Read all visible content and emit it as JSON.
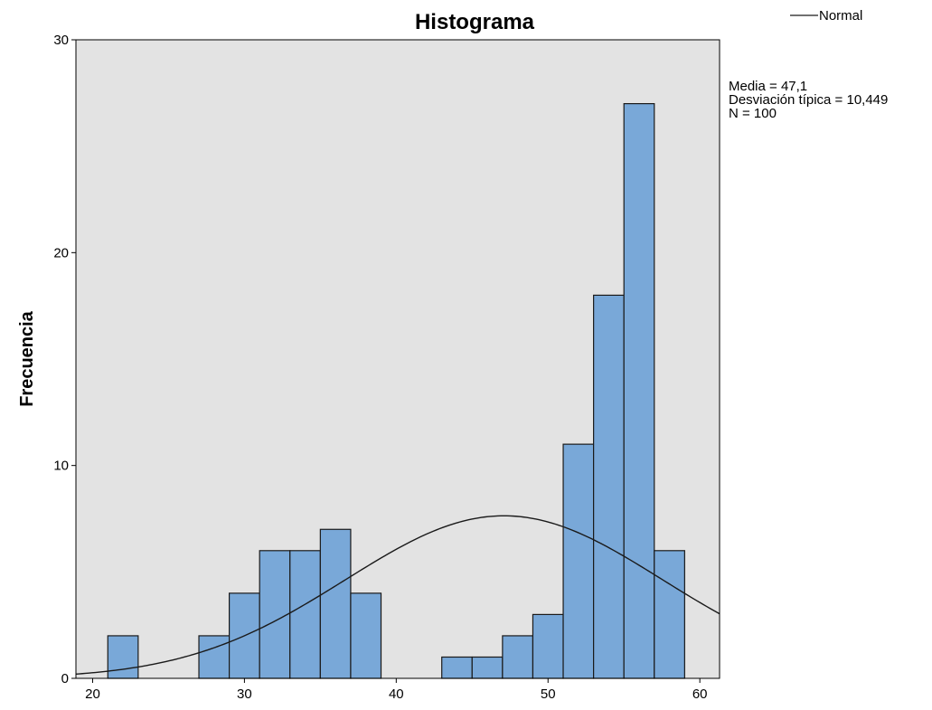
{
  "chart_data": {
    "type": "bar",
    "title": "Histograma",
    "ylabel": "Frecuencia",
    "xlabel": "",
    "bin_width": 2,
    "bins": [
      {
        "x0": 21,
        "x1": 23,
        "count": 2
      },
      {
        "x0": 23,
        "x1": 25,
        "count": 0
      },
      {
        "x0": 25,
        "x1": 27,
        "count": 0
      },
      {
        "x0": 27,
        "x1": 29,
        "count": 2
      },
      {
        "x0": 29,
        "x1": 31,
        "count": 4
      },
      {
        "x0": 31,
        "x1": 33,
        "count": 6
      },
      {
        "x0": 33,
        "x1": 35,
        "count": 6
      },
      {
        "x0": 35,
        "x1": 37,
        "count": 7
      },
      {
        "x0": 37,
        "x1": 39,
        "count": 4
      },
      {
        "x0": 39,
        "x1": 41,
        "count": 0
      },
      {
        "x0": 41,
        "x1": 43,
        "count": 0
      },
      {
        "x0": 43,
        "x1": 45,
        "count": 1
      },
      {
        "x0": 45,
        "x1": 47,
        "count": 1
      },
      {
        "x0": 47,
        "x1": 49,
        "count": 2
      },
      {
        "x0": 49,
        "x1": 51,
        "count": 3
      },
      {
        "x0": 51,
        "x1": 53,
        "count": 11
      },
      {
        "x0": 53,
        "x1": 55,
        "count": 18
      },
      {
        "x0": 55,
        "x1": 57,
        "count": 27
      },
      {
        "x0": 57,
        "x1": 59,
        "count": 6
      }
    ],
    "xlim": [
      18.9,
      61.3
    ],
    "ylim": [
      0,
      30
    ],
    "x_ticks": [
      20,
      30,
      40,
      50,
      60
    ],
    "y_ticks": [
      0,
      10,
      20,
      30
    ],
    "normal_curve": {
      "mean": 47.1,
      "sd": 10.449,
      "n": 100,
      "bin_width": 2,
      "legend_label": "Normal"
    },
    "stats": [
      "Media = 47,1",
      "Desviación típica = 10,449",
      "N = 100"
    ],
    "legend_position": "top-right",
    "grid": false,
    "colors": {
      "bar_fill": "#79a8d8",
      "bar_stroke": "#1a1a1a",
      "plot_bg": "#e3e3e3",
      "curve": "#1a1a1a"
    }
  }
}
